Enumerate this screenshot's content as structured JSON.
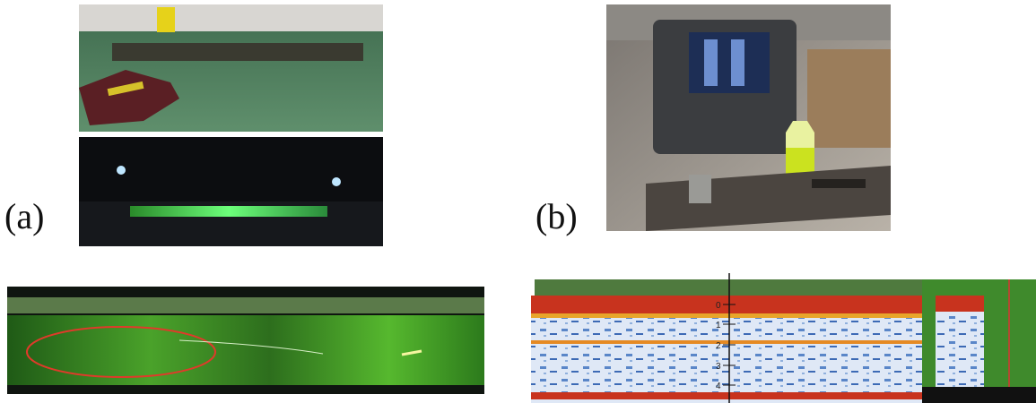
{
  "panels": {
    "a": {
      "label": "(a)"
    },
    "b": {
      "label": "(b)"
    }
  },
  "scan": {
    "depth_labels": [
      "0",
      "1",
      "2",
      "3",
      "4"
    ]
  }
}
